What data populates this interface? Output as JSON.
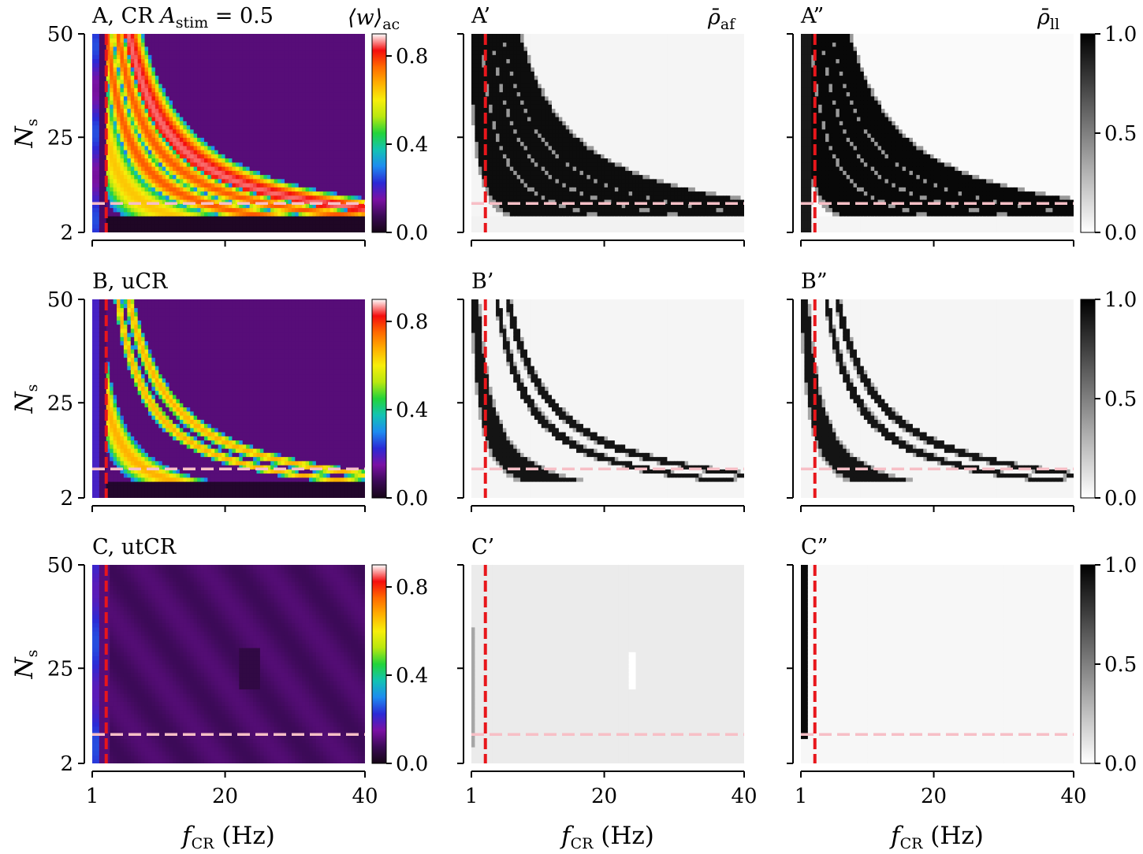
{
  "figure": {
    "panel_titles": [
      {
        "lead": "A, CR ",
        "var": "A",
        "sub": "stim",
        "tail": " = 0.5"
      },
      {
        "lead": "A’"
      },
      {
        "lead": "A”"
      },
      {
        "lead": "B, uCR"
      },
      {
        "lead": "B’"
      },
      {
        "lead": "B”"
      },
      {
        "lead": "C, utCR"
      },
      {
        "lead": "C’"
      },
      {
        "lead": "C”"
      }
    ],
    "colorbar_titles": [
      {
        "main": "⟨w⟩",
        "sub": "ac"
      },
      {
        "main": "ρ̄",
        "sub": "af"
      },
      {
        "main": "ρ̄",
        "sub": "ll"
      }
    ],
    "ylabel": {
      "main": "N",
      "sub": "s"
    },
    "xlabel": {
      "main": "f",
      "sub": "CR",
      "tail": " (Hz)"
    },
    "xticks": [
      "1",
      "20",
      "40"
    ],
    "yticks": [
      "2",
      "25",
      "50"
    ],
    "colorbar_ticks_w": [
      "0.0",
      "0.4",
      "0.8"
    ],
    "colorbar_ticks_rho": [
      "0.0",
      "0.5",
      "1.0"
    ]
  },
  "colors": {
    "threshold_vertical": "#e8161b",
    "threshold_horizontal": "#f7bfc6",
    "colormap_w": [
      "#160616",
      "#3b0a56",
      "#7a11a4",
      "#2b2ad6",
      "#1d8cf0",
      "#12c3b3",
      "#23d43a",
      "#b9e80f",
      "#f7ee0a",
      "#ffb000",
      "#ff6a00",
      "#f40d0d",
      "#ffffff"
    ],
    "colormap_rho": [
      "#ffffff",
      "#000000"
    ]
  },
  "chart_data": [
    {
      "type": "heatmap",
      "title": "A, CR A_stim = 0.5",
      "xlabel": "f_CR (Hz)",
      "ylabel": "N_s",
      "xlim": [
        1,
        40
      ],
      "ylim": [
        2,
        50
      ],
      "colorbar_label": "⟨w⟩_ac",
      "colorbar_range": [
        0.0,
        0.9
      ],
      "colormap": "nipy_spectral",
      "threshold_lines": {
        "vertical_fCR": 3,
        "horizontal_Ns": 9
      }
    },
    {
      "type": "heatmap",
      "title": "A’",
      "xlabel": "f_CR (Hz)",
      "xlim": [
        1,
        40
      ],
      "ylim": [
        2,
        50
      ],
      "colorbar_label": "ρ̄_af",
      "colormap": "gray_r"
    },
    {
      "type": "heatmap",
      "title": "A”",
      "xlabel": "f_CR (Hz)",
      "xlim": [
        1,
        40
      ],
      "ylim": [
        2,
        50
      ],
      "colorbar_label": "ρ̄_ll",
      "colorbar_range": [
        0.0,
        1.0
      ],
      "colormap": "gray_r"
    },
    {
      "type": "heatmap",
      "title": "B, uCR",
      "xlabel": "f_CR (Hz)",
      "ylabel": "N_s",
      "xlim": [
        1,
        40
      ],
      "ylim": [
        2,
        50
      ],
      "colorbar_range": [
        0.0,
        0.9
      ],
      "colormap": "nipy_spectral"
    },
    {
      "type": "heatmap",
      "title": "B’",
      "xlabel": "f_CR (Hz)",
      "xlim": [
        1,
        40
      ],
      "ylim": [
        2,
        50
      ],
      "colormap": "gray_r"
    },
    {
      "type": "heatmap",
      "title": "B”",
      "xlabel": "f_CR (Hz)",
      "xlim": [
        1,
        40
      ],
      "ylim": [
        2,
        50
      ],
      "colorbar_range": [
        0.0,
        1.0
      ],
      "colormap": "gray_r"
    },
    {
      "type": "heatmap",
      "title": "C, utCR",
      "xlabel": "f_CR (Hz)",
      "ylabel": "N_s",
      "xlim": [
        1,
        40
      ],
      "ylim": [
        2,
        50
      ],
      "colorbar_range": [
        0.0,
        0.9
      ],
      "colormap": "nipy_spectral"
    },
    {
      "type": "heatmap",
      "title": "C’",
      "xlabel": "f_CR (Hz)",
      "xlim": [
        1,
        40
      ],
      "ylim": [
        2,
        50
      ],
      "colormap": "gray_r"
    },
    {
      "type": "heatmap",
      "title": "C”",
      "xlabel": "f_CR (Hz)",
      "xlim": [
        1,
        40
      ],
      "ylim": [
        2,
        50
      ],
      "colorbar_range": [
        0.0,
        1.0
      ],
      "colormap": "gray_r"
    }
  ]
}
